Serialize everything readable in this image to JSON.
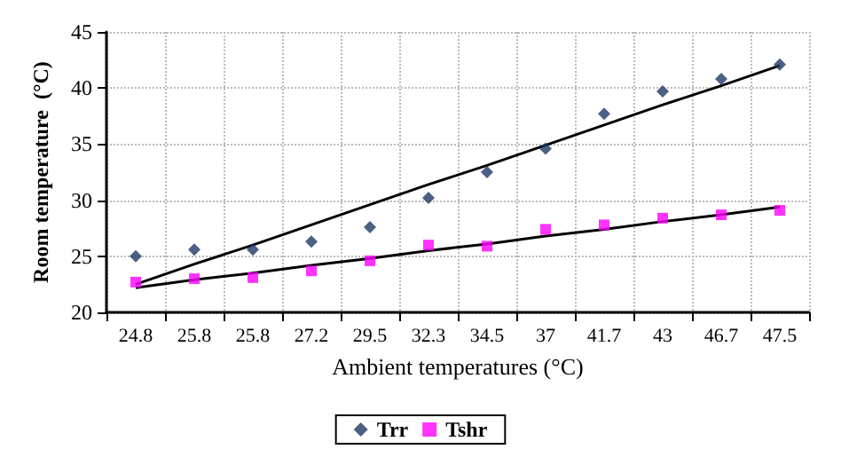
{
  "chart_data": {
    "type": "scatter",
    "xlabel": "Ambient temperatures (°C)",
    "ylabel": "Room temperature  (°C)",
    "categories": [
      "24.8",
      "25.8",
      "25.8",
      "27.2",
      "29.5",
      "32.3",
      "34.5",
      "37",
      "41.7",
      "43",
      "46.7",
      "47.5"
    ],
    "series": [
      {
        "name": "Trr",
        "type": "scatter",
        "marker": "diamond",
        "color": "#1f3864",
        "values": [
          25.0,
          25.6,
          25.6,
          26.3,
          27.6,
          30.2,
          32.5,
          34.6,
          37.7,
          39.7,
          40.8,
          42.1
        ]
      },
      {
        "name": "Tshr",
        "type": "scatter",
        "marker": "square",
        "color": "#ff00ff",
        "values": [
          22.7,
          23.0,
          23.1,
          23.7,
          24.6,
          26.0,
          25.9,
          27.4,
          27.8,
          28.4,
          28.7,
          29.1
        ]
      },
      {
        "type": "line",
        "marker": "none",
        "line_style": "solid",
        "color": "#000000",
        "values": [
          22.5,
          24.3,
          26.0,
          27.8,
          29.6,
          31.4,
          33.1,
          34.9,
          36.7,
          38.5,
          40.2,
          42.0
        ]
      },
      {
        "type": "line",
        "marker": "none",
        "line_style": "solid",
        "color": "#000000",
        "values": [
          22.2,
          22.9,
          23.5,
          24.2,
          24.8,
          25.5,
          26.1,
          26.8,
          27.4,
          28.1,
          28.7,
          29.4
        ]
      }
    ],
    "ylim": [
      20,
      45
    ],
    "yticks": [
      20,
      25,
      30,
      35,
      40,
      45
    ],
    "grid": true,
    "legend": "bottom"
  }
}
